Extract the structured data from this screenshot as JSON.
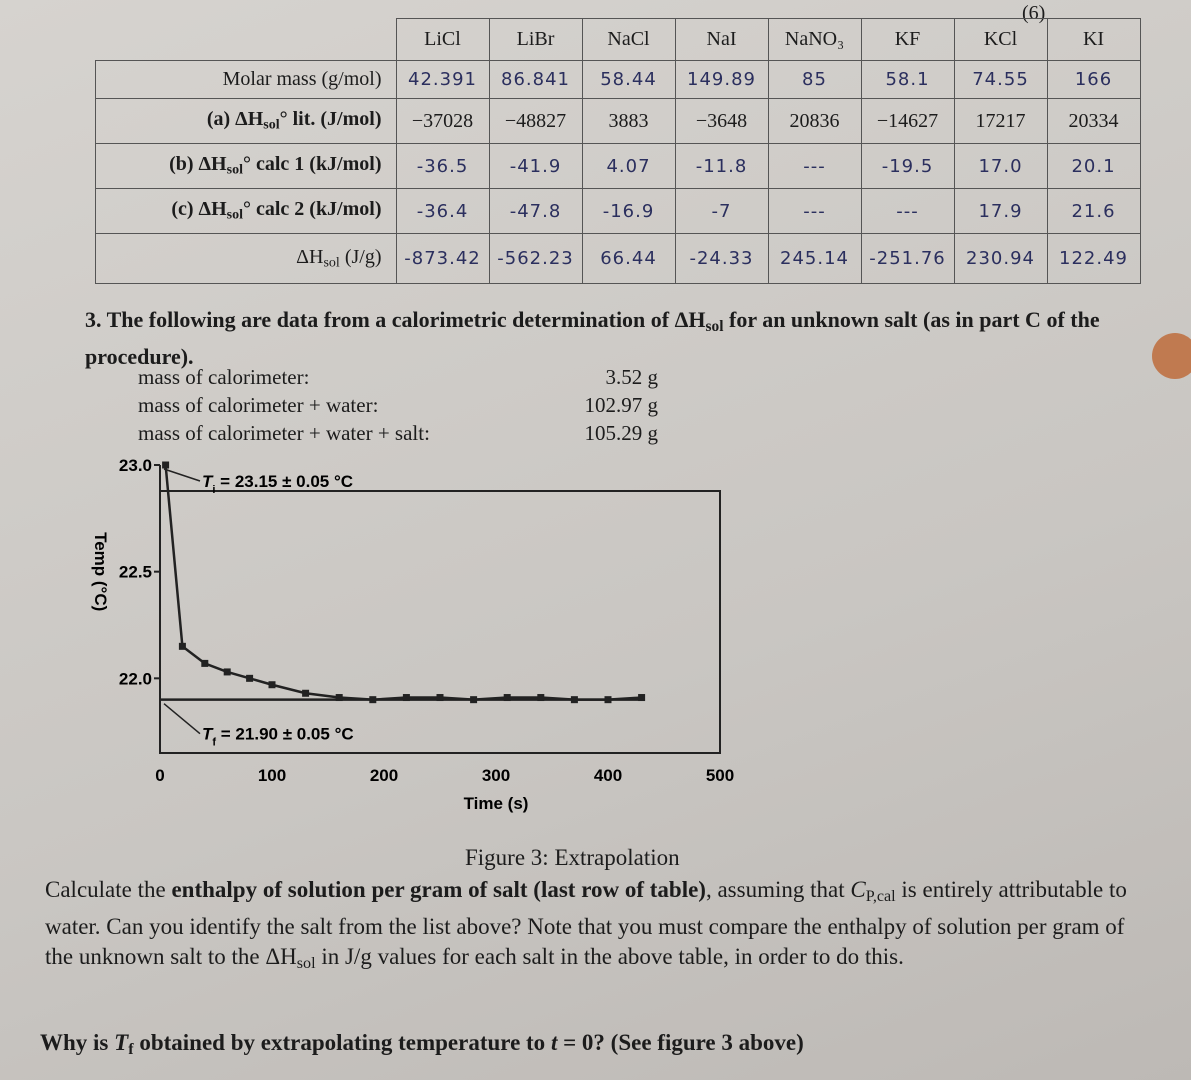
{
  "page_number": "(6)",
  "table": {
    "columns": [
      "LiCl",
      "LiBr",
      "NaCl",
      "NaI",
      "NaNO₃",
      "KF",
      "KCl",
      "KI"
    ],
    "rows": [
      {
        "label": [
          {
            "text": "Molar mass (g/mol)"
          }
        ],
        "handwritten": true,
        "cells": [
          "42.391",
          "86.841",
          "58.44",
          "149.89",
          "85",
          "58.1",
          "74.55",
          "166"
        ]
      },
      {
        "label": [
          {
            "text": "(a) ΔH",
            "style": "b"
          },
          {
            "text": "sol",
            "style": "bsub"
          },
          {
            "text": "° lit. (J/mol)",
            "style": "b"
          }
        ],
        "handwritten": false,
        "cells": [
          "−37028",
          "−48827",
          "3883",
          "−3648",
          "20836",
          "−14627",
          "17217",
          "20334"
        ]
      },
      {
        "label": [
          {
            "text": "(b) ΔH",
            "style": "b"
          },
          {
            "text": "sol",
            "style": "bsub"
          },
          {
            "text": "° calc 1 (kJ/mol)",
            "style": "b"
          }
        ],
        "handwritten": true,
        "cells": [
          "-36.5",
          "-41.9",
          "4.07",
          "-11.8",
          "---",
          "-19.5",
          "17.0",
          "20.1"
        ]
      },
      {
        "label": [
          {
            "text": "(c) ΔH",
            "style": "b"
          },
          {
            "text": "sol",
            "style": "bsub"
          },
          {
            "text": "° calc 2 (kJ/mol)",
            "style": "b"
          }
        ],
        "handwritten": true,
        "cells": [
          "-36.4",
          "-47.8",
          "-16.9",
          "-7",
          "---",
          "---",
          "17.9",
          "21.6"
        ]
      },
      {
        "label": [
          {
            "text": "ΔH"
          },
          {
            "text": "sol",
            "style": "sub"
          },
          {
            "text": " (J/g)"
          }
        ],
        "handwritten": true,
        "cells": [
          "-873.42",
          "-562.23",
          "66.44",
          "-24.33",
          "245.14",
          "-251.76",
          "230.94",
          "122.49"
        ]
      }
    ]
  },
  "question": [
    {
      "text": "3. The following are data from a calorimetric determination of ΔH",
      "style": "b"
    },
    {
      "text": "sol",
      "style": "bsub"
    },
    {
      "text": " for an unknown salt (as in part C of the procedure).",
      "style": "b"
    }
  ],
  "masses": [
    {
      "label": "mass of calorimeter:",
      "value": "3.52 g"
    },
    {
      "label": "mass of calorimeter + water:",
      "value": "102.97 g"
    },
    {
      "label": "mass of calorimeter + water + salt:",
      "value": "105.29 g"
    }
  ],
  "chart_data": {
    "type": "line",
    "ylabel": "Temp (°C)",
    "xlabel": "Time (s)",
    "xlim": [
      0,
      500
    ],
    "xticks": [
      0,
      100,
      200,
      300,
      400,
      500
    ],
    "ylim": [
      21.65,
      23.0
    ],
    "yticks": [
      {
        "value": 22.0,
        "label": "22.0"
      },
      {
        "value": 22.5,
        "label": "22.5"
      },
      {
        "value": 23.0,
        "label": "23.0"
      }
    ],
    "series": [
      {
        "name": "data",
        "color": "#222222",
        "markers": true,
        "x": [
          5,
          20,
          40,
          60,
          80,
          100,
          130,
          160,
          190,
          220,
          250,
          280,
          310,
          340,
          370,
          400,
          430
        ],
        "values": [
          23.0,
          22.15,
          22.07,
          22.03,
          22.0,
          21.97,
          21.93,
          21.91,
          21.9,
          21.91,
          21.91,
          21.9,
          21.91,
          21.91,
          21.9,
          21.9,
          21.91
        ]
      },
      {
        "name": "extrapolation",
        "color": "#222222",
        "markers": false,
        "x": [
          0,
          430
        ],
        "values": [
          21.9,
          21.9
        ]
      }
    ],
    "annotations": [
      {
        "parts": [
          {
            "text": "T",
            "style": "bi"
          },
          {
            "text": "i",
            "style": "bsub"
          },
          {
            "text": " = 23.15 ± 0.05 °C",
            "style": "b"
          }
        ],
        "x": 0,
        "y": 23.0
      },
      {
        "parts": [
          {
            "text": "T",
            "style": "bi"
          },
          {
            "text": "f",
            "style": "bsub"
          },
          {
            "text": " = 21.90 ± 0.05 °C",
            "style": "b"
          }
        ],
        "x": 0,
        "y": 21.9
      }
    ]
  },
  "caption": "Figure 3: Extrapolation",
  "calculate": [
    {
      "text": "Calculate the "
    },
    {
      "text": "enthalpy of solution per gram of salt (last row of table)",
      "style": "b"
    },
    {
      "text": ", assuming that "
    },
    {
      "text": "C",
      "style": "i"
    },
    {
      "text": "P,cal",
      "style": "sub"
    },
    {
      "text": " is entirely attributable to water.  Can you identify the salt from the list above? Note that you must compare the enthalpy of solution per gram of the unknown salt to the ΔH"
    },
    {
      "text": "sol",
      "style": "sub"
    },
    {
      "text": " in J/g values for each salt in the above table, in order to do this."
    }
  ],
  "why": [
    {
      "text": "Why is ",
      "style": "b"
    },
    {
      "text": "T",
      "style": "bi"
    },
    {
      "text": "f",
      "style": "bsub"
    },
    {
      "text": " obtained by extrapolating temperature to ",
      "style": "b"
    },
    {
      "text": "t",
      "style": "bi"
    },
    {
      "text": " = 0?  (See figure 3 above)",
      "style": "b"
    }
  ]
}
